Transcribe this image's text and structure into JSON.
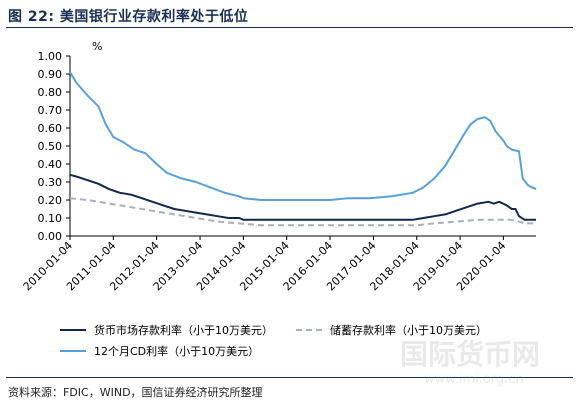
{
  "figure": {
    "title": "图 22:  美国银行业存款利率处于低位",
    "source": "资料来源：FDIC，WIND，国信证券经济研究所整理",
    "watermark_logo_text": "国际货币网",
    "watermark_url": "www.imi.org.cn"
  },
  "chart_data": {
    "type": "line",
    "title": "图 22:  美国银行业存款利率处于低位",
    "ylabel": "%",
    "xlabel": "",
    "ylim": [
      0,
      1.0
    ],
    "yticks": [
      "0.00",
      "0.10",
      "0.20",
      "0.30",
      "0.40",
      "0.50",
      "0.60",
      "0.70",
      "0.80",
      "0.90",
      "1.00"
    ],
    "xlim": [
      "2010-01-04",
      "2020-10-05"
    ],
    "xticks": [
      "2010-01-04",
      "2011-01-04",
      "2012-01-04",
      "2013-01-04",
      "2014-01-04",
      "2015-01-04",
      "2016-01-04",
      "2017-01-04",
      "2018-01-04",
      "2019-01-04",
      "2020-01-04"
    ],
    "grid": false,
    "legend_position": "bottom",
    "series": [
      {
        "name": "货币市场存款利率（小于10万美元）",
        "color": "#12294b",
        "dash": "solid",
        "points": [
          [
            "2010-01-04",
            0.34
          ],
          [
            "2010-03-01",
            0.33
          ],
          [
            "2010-06-01",
            0.31
          ],
          [
            "2010-09-01",
            0.29
          ],
          [
            "2010-12-01",
            0.26
          ],
          [
            "2011-03-01",
            0.24
          ],
          [
            "2011-06-01",
            0.23
          ],
          [
            "2011-09-01",
            0.21
          ],
          [
            "2011-12-01",
            0.19
          ],
          [
            "2012-03-01",
            0.17
          ],
          [
            "2012-06-01",
            0.15
          ],
          [
            "2012-09-01",
            0.14
          ],
          [
            "2012-12-01",
            0.13
          ],
          [
            "2013-03-01",
            0.12
          ],
          [
            "2013-06-01",
            0.11
          ],
          [
            "2013-09-01",
            0.1
          ],
          [
            "2013-12-01",
            0.1
          ],
          [
            "2014-01-04",
            0.09
          ],
          [
            "2014-06-01",
            0.09
          ],
          [
            "2015-01-04",
            0.09
          ],
          [
            "2016-01-04",
            0.09
          ],
          [
            "2017-01-04",
            0.09
          ],
          [
            "2017-06-01",
            0.09
          ],
          [
            "2017-12-01",
            0.09
          ],
          [
            "2018-03-01",
            0.1
          ],
          [
            "2018-06-01",
            0.11
          ],
          [
            "2018-09-01",
            0.12
          ],
          [
            "2018-12-01",
            0.14
          ],
          [
            "2019-03-01",
            0.16
          ],
          [
            "2019-06-01",
            0.18
          ],
          [
            "2019-09-01",
            0.19
          ],
          [
            "2019-10-15",
            0.18
          ],
          [
            "2019-12-01",
            0.19
          ],
          [
            "2020-02-01",
            0.17
          ],
          [
            "2020-03-15",
            0.15
          ],
          [
            "2020-04-15",
            0.15
          ],
          [
            "2020-05-15",
            0.11
          ],
          [
            "2020-07-01",
            0.09
          ],
          [
            "2020-10-05",
            0.09
          ]
        ]
      },
      {
        "name": "储蓄存款利率（小于10万美元）",
        "color": "#a8b0bc",
        "dash": "dashed",
        "points": [
          [
            "2010-01-04",
            0.21
          ],
          [
            "2010-06-01",
            0.2
          ],
          [
            "2010-12-01",
            0.18
          ],
          [
            "2011-06-01",
            0.16
          ],
          [
            "2011-12-01",
            0.14
          ],
          [
            "2012-06-01",
            0.12
          ],
          [
            "2012-12-01",
            0.1
          ],
          [
            "2013-06-01",
            0.08
          ],
          [
            "2013-12-01",
            0.07
          ],
          [
            "2014-06-01",
            0.06
          ],
          [
            "2015-01-04",
            0.06
          ],
          [
            "2016-01-04",
            0.06
          ],
          [
            "2017-01-04",
            0.06
          ],
          [
            "2018-01-04",
            0.06
          ],
          [
            "2018-06-01",
            0.07
          ],
          [
            "2018-12-01",
            0.08
          ],
          [
            "2019-06-01",
            0.09
          ],
          [
            "2019-12-01",
            0.09
          ],
          [
            "2020-03-01",
            0.09
          ],
          [
            "2020-05-15",
            0.08
          ],
          [
            "2020-07-01",
            0.07
          ],
          [
            "2020-10-05",
            0.07
          ]
        ]
      },
      {
        "name": "12个月CD利率（小于10万美元）",
        "color": "#5aa0d8",
        "dash": "solid",
        "points": [
          [
            "2010-01-04",
            0.91
          ],
          [
            "2010-03-01",
            0.85
          ],
          [
            "2010-06-01",
            0.78
          ],
          [
            "2010-09-01",
            0.72
          ],
          [
            "2010-11-01",
            0.62
          ],
          [
            "2011-01-04",
            0.55
          ],
          [
            "2011-04-01",
            0.52
          ],
          [
            "2011-07-01",
            0.48
          ],
          [
            "2011-10-01",
            0.46
          ],
          [
            "2012-01-04",
            0.4
          ],
          [
            "2012-04-01",
            0.35
          ],
          [
            "2012-08-01",
            0.32
          ],
          [
            "2012-12-01",
            0.3
          ],
          [
            "2013-04-01",
            0.27
          ],
          [
            "2013-08-01",
            0.24
          ],
          [
            "2013-12-01",
            0.22
          ],
          [
            "2014-01-04",
            0.21
          ],
          [
            "2014-06-01",
            0.2
          ],
          [
            "2014-12-01",
            0.2
          ],
          [
            "2015-06-01",
            0.2
          ],
          [
            "2016-01-04",
            0.2
          ],
          [
            "2016-06-01",
            0.21
          ],
          [
            "2016-12-01",
            0.21
          ],
          [
            "2017-06-01",
            0.22
          ],
          [
            "2017-12-01",
            0.24
          ],
          [
            "2018-03-01",
            0.27
          ],
          [
            "2018-06-01",
            0.32
          ],
          [
            "2018-09-01",
            0.39
          ],
          [
            "2018-12-01",
            0.49
          ],
          [
            "2019-02-01",
            0.56
          ],
          [
            "2019-04-01",
            0.62
          ],
          [
            "2019-06-01",
            0.65
          ],
          [
            "2019-08-01",
            0.66
          ],
          [
            "2019-09-15",
            0.64
          ],
          [
            "2019-11-01",
            0.58
          ],
          [
            "2020-01-04",
            0.53
          ],
          [
            "2020-02-01",
            0.5
          ],
          [
            "2020-03-15",
            0.48
          ],
          [
            "2020-05-15",
            0.47
          ],
          [
            "2020-06-15",
            0.32
          ],
          [
            "2020-08-01",
            0.28
          ],
          [
            "2020-10-05",
            0.26
          ]
        ]
      }
    ]
  }
}
